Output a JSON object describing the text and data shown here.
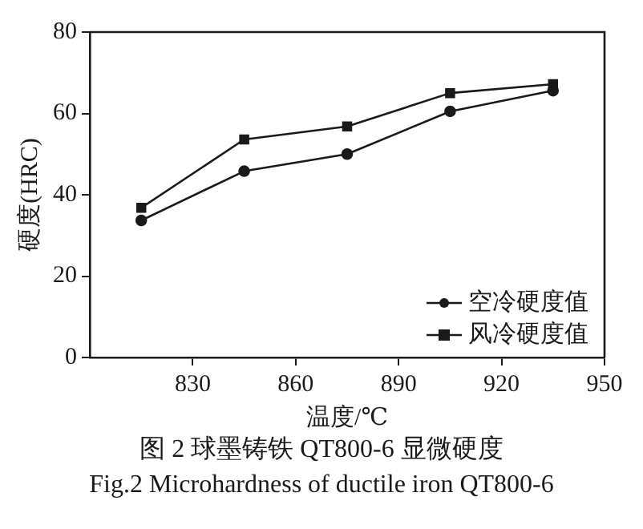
{
  "chart_data": {
    "type": "line",
    "xlabel": "温度/℃",
    "ylabel": "硬度(HRC)",
    "x": [
      815,
      845,
      875,
      905,
      935
    ],
    "series": [
      {
        "name": "空冷硬度值",
        "color": "#1a1a1a",
        "values": [
          33.7,
          45.8,
          50,
          60.5,
          65.6
        ],
        "marker": "circle"
      },
      {
        "name": "风冷硬度值",
        "color": "#1a1a1a",
        "values": [
          36.8,
          53.6,
          56.8,
          65,
          67.2
        ],
        "marker": "square"
      }
    ],
    "xlim": [
      800,
      950
    ],
    "xticks": [
      830,
      860,
      890,
      920,
      950
    ],
    "ylim": [
      0,
      80
    ],
    "yticks": [
      0,
      20,
      40,
      60,
      80
    ],
    "grid": false,
    "legend": "bottom right",
    "line_style": "solid",
    "annotations": [
      "图 2 球墨铸铁 QT800-6 显微硬度",
      "Fig.2  Microhardness of ductile iron QT800-6"
    ]
  }
}
